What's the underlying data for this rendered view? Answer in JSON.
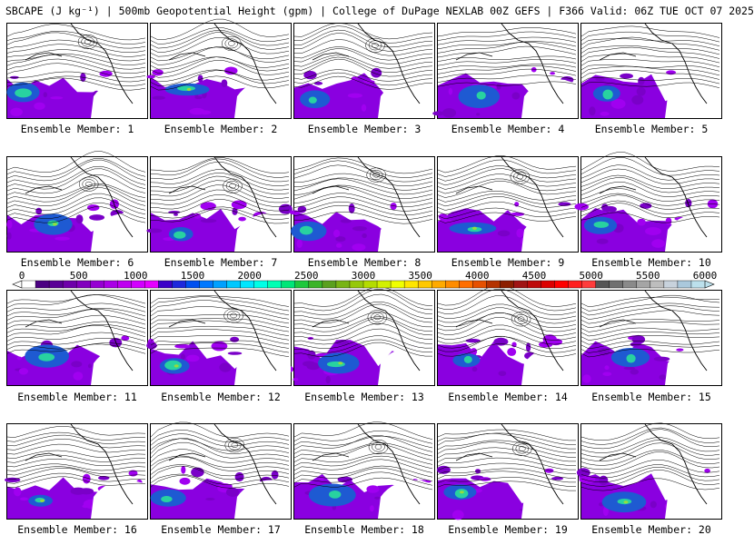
{
  "title": "SBCAPE (J kg⁻¹) | 500mb Geopotential Height (gpm) | College of DuPage NEXLAB 00Z GEFS | F366 Valid: 06Z TUE OCT 07 2025",
  "members": [
    {
      "label": "Ensemble Member: 1"
    },
    {
      "label": "Ensemble Member: 2"
    },
    {
      "label": "Ensemble Member: 3"
    },
    {
      "label": "Ensemble Member: 4"
    },
    {
      "label": "Ensemble Member: 5"
    },
    {
      "label": "Ensemble Member: 6"
    },
    {
      "label": "Ensemble Member: 7"
    },
    {
      "label": "Ensemble Member: 8"
    },
    {
      "label": "Ensemble Member: 9"
    },
    {
      "label": "Ensemble Member: 10"
    },
    {
      "label": "Ensemble Member: 11"
    },
    {
      "label": "Ensemble Member: 12"
    },
    {
      "label": "Ensemble Member: 13"
    },
    {
      "label": "Ensemble Member: 14"
    },
    {
      "label": "Ensemble Member: 15"
    },
    {
      "label": "Ensemble Member: 16"
    },
    {
      "label": "Ensemble Member: 17"
    },
    {
      "label": "Ensemble Member: 18"
    },
    {
      "label": "Ensemble Member: 19"
    },
    {
      "label": "Ensemble Member: 20"
    }
  ],
  "colorbar": {
    "ticks": [
      "0",
      "500",
      "1000",
      "1500",
      "2000",
      "2500",
      "3000",
      "3500",
      "4000",
      "4500",
      "5000",
      "5500",
      "6000"
    ],
    "colors": [
      "#ffffff",
      "#4b0082",
      "#5a0096",
      "#6e00aa",
      "#8200be",
      "#9600d2",
      "#aa00e6",
      "#be00f0",
      "#d200ff",
      "#e600ff",
      "#3c00c8",
      "#1e28dc",
      "#0050f0",
      "#0078ff",
      "#00a0ff",
      "#00c8ff",
      "#00e6ff",
      "#00ffe6",
      "#00ffb4",
      "#00e678",
      "#1ec83c",
      "#3cb428",
      "#5aa01e",
      "#78b414",
      "#96c80a",
      "#b4dc00",
      "#d2f000",
      "#f0ff00",
      "#ffe600",
      "#ffc800",
      "#ffaa00",
      "#ff8c00",
      "#ff6e00",
      "#e65000",
      "#b43200",
      "#8c1e00",
      "#a01414",
      "#be0a0a",
      "#dc0000",
      "#ff0000",
      "#ff1e1e",
      "#ff3c3c",
      "#555555",
      "#707070",
      "#8a8a8a",
      "#a5a5a5",
      "#bdbdbd",
      "#c8d2dc",
      "#aac8dc",
      "#bce0ec"
    ]
  },
  "colors": {
    "low_cape": "#8a00e0",
    "mid_cape": "#1e5ad2",
    "high_cape": "#28d2a0",
    "very_high": "#96dc3c",
    "contour": "#000000"
  }
}
